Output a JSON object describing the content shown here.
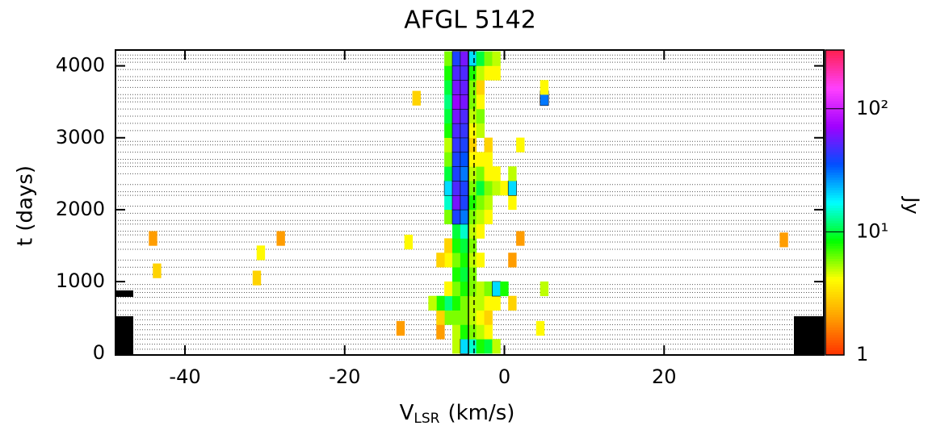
{
  "chart_data": {
    "type": "heatmap",
    "title": "AFGL 5142",
    "xlabel": {
      "main": "V",
      "sub": "LSR",
      "unit": "(km/s)"
    },
    "ylabel": "t (days)",
    "colorbar_label": "Jy",
    "xlim": [
      -48.7,
      40
    ],
    "ylim": [
      -20,
      4220
    ],
    "xticks": [
      -40,
      -20,
      0,
      20
    ],
    "yticks": [
      0,
      1000,
      2000,
      3000,
      4000
    ],
    "zlim": [
      1,
      300
    ],
    "zscale": "log",
    "zticks": [
      1,
      {
        "value": 10,
        "label": "10¹"
      },
      {
        "value": 100,
        "label": "10²"
      }
    ],
    "colormap": [
      "#ff3000",
      "#ffa000",
      "#ffff00",
      "#00ff00",
      "#00ffff",
      "#0050ff",
      "#a000ff",
      "#ff40ff",
      "#ff2050"
    ],
    "epochs": [
      60,
      130,
      200,
      260,
      330,
      400,
      470,
      540,
      600,
      700,
      780,
      850,
      900,
      960,
      1100,
      1200,
      1300,
      1450,
      1550,
      1650,
      1700,
      1800,
      1850,
      1950,
      2050,
      2200,
      2250,
      2350,
      2500,
      2600,
      2650,
      2700,
      2800,
      2900,
      2950,
      3100,
      3200,
      3300,
      3400,
      3500,
      3550,
      3600,
      3700,
      3800,
      3850,
      3950,
      4050,
      4100,
      4150
    ],
    "vlines": [
      {
        "x": -4.5,
        "style": "solid"
      },
      {
        "x": -3.8,
        "style": "dashed"
      }
    ],
    "points": [
      [
        -7,
        500,
        6
      ],
      [
        -7,
        700,
        12
      ],
      [
        -7,
        900,
        4
      ],
      [
        -7,
        1300,
        4
      ],
      [
        -7,
        1500,
        3
      ],
      [
        -7,
        1900,
        6
      ],
      [
        -7,
        2100,
        15
      ],
      [
        -7,
        2300,
        20
      ],
      [
        -7,
        2500,
        10
      ],
      [
        -7,
        2700,
        6
      ],
      [
        -7,
        2900,
        5
      ],
      [
        -7,
        3100,
        8
      ],
      [
        -7,
        3300,
        10
      ],
      [
        -7,
        3500,
        12
      ],
      [
        -7,
        3700,
        10
      ],
      [
        -7,
        3900,
        8
      ],
      [
        -7,
        4100,
        6
      ],
      [
        -6,
        100,
        5
      ],
      [
        -6,
        300,
        5
      ],
      [
        -6,
        500,
        6
      ],
      [
        -6,
        700,
        8
      ],
      [
        -6,
        900,
        6
      ],
      [
        -6,
        1100,
        8
      ],
      [
        -6,
        1300,
        6
      ],
      [
        -6,
        1500,
        8
      ],
      [
        -6,
        1700,
        10
      ],
      [
        -6,
        1900,
        40
      ],
      [
        -6,
        2100,
        60
      ],
      [
        -6,
        2300,
        50
      ],
      [
        -6,
        2500,
        40
      ],
      [
        -6,
        2700,
        40
      ],
      [
        -6,
        2900,
        45
      ],
      [
        -6,
        3100,
        50
      ],
      [
        -6,
        3300,
        60
      ],
      [
        -6,
        3500,
        70
      ],
      [
        -6,
        3700,
        60
      ],
      [
        -6,
        3900,
        50
      ],
      [
        -6,
        4100,
        40
      ],
      [
        -5,
        100,
        20
      ],
      [
        -5,
        300,
        8
      ],
      [
        -5,
        500,
        6
      ],
      [
        -5,
        700,
        6
      ],
      [
        -5,
        900,
        8
      ],
      [
        -5,
        1100,
        10
      ],
      [
        -5,
        1300,
        8
      ],
      [
        -5,
        1500,
        10
      ],
      [
        -5,
        1700,
        15
      ],
      [
        -5,
        1900,
        30
      ],
      [
        -5,
        2100,
        40
      ],
      [
        -5,
        2300,
        40
      ],
      [
        -5,
        2500,
        30
      ],
      [
        -5,
        2700,
        35
      ],
      [
        -5,
        2900,
        40
      ],
      [
        -5,
        3100,
        45
      ],
      [
        -5,
        3300,
        50
      ],
      [
        -5,
        3500,
        60
      ],
      [
        -5,
        3700,
        55
      ],
      [
        -5,
        3900,
        50
      ],
      [
        -5,
        4100,
        60
      ],
      [
        -4,
        100,
        15
      ],
      [
        -4,
        300,
        6
      ],
      [
        -4,
        500,
        5
      ],
      [
        -4,
        700,
        5
      ],
      [
        -4,
        900,
        6
      ],
      [
        -4,
        1100,
        6
      ],
      [
        -4,
        1300,
        5
      ],
      [
        -4,
        1500,
        6
      ],
      [
        -4,
        1700,
        5
      ],
      [
        -4,
        1900,
        6
      ],
      [
        -4,
        2100,
        8
      ],
      [
        -4,
        2300,
        6
      ],
      [
        -4,
        2500,
        5
      ],
      [
        -4,
        2700,
        4
      ],
      [
        -4,
        2900,
        3
      ],
      [
        -4,
        3100,
        4
      ],
      [
        -4,
        3300,
        5
      ],
      [
        -4,
        3500,
        6
      ],
      [
        -4,
        3700,
        6
      ],
      [
        -4,
        3900,
        8
      ],
      [
        -4,
        4100,
        20
      ],
      [
        -3,
        100,
        8
      ],
      [
        -3,
        300,
        5
      ],
      [
        -3,
        500,
        4
      ],
      [
        -3,
        700,
        5
      ],
      [
        -3,
        900,
        5
      ],
      [
        -3,
        1300,
        4
      ],
      [
        -3,
        1700,
        4
      ],
      [
        -3,
        1900,
        5
      ],
      [
        -3,
        2100,
        6
      ],
      [
        -3,
        2300,
        10
      ],
      [
        -3,
        2500,
        6
      ],
      [
        -3,
        2700,
        4
      ],
      [
        -3,
        3100,
        5
      ],
      [
        -3,
        3300,
        6
      ],
      [
        -3,
        3500,
        4
      ],
      [
        -3,
        3700,
        3
      ],
      [
        -3,
        3900,
        5
      ],
      [
        -3,
        4100,
        10
      ],
      [
        -2,
        100,
        10
      ],
      [
        -2,
        300,
        4
      ],
      [
        -2,
        500,
        3
      ],
      [
        -2,
        700,
        4
      ],
      [
        -2,
        900,
        6
      ],
      [
        -2,
        1900,
        4
      ],
      [
        -2,
        2100,
        5
      ],
      [
        -2,
        2300,
        6
      ],
      [
        -2,
        2500,
        4
      ],
      [
        -2,
        2700,
        4
      ],
      [
        -2,
        2900,
        3
      ],
      [
        -2,
        3900,
        4
      ],
      [
        -2,
        4100,
        6
      ],
      [
        -1,
        100,
        5
      ],
      [
        -1,
        700,
        4
      ],
      [
        -1,
        900,
        20
      ],
      [
        -1,
        2300,
        5
      ],
      [
        -1,
        2500,
        4
      ],
      [
        -1,
        3900,
        4
      ],
      [
        -1,
        4100,
        5
      ],
      [
        0,
        900,
        8
      ],
      [
        0,
        2300,
        4
      ],
      [
        1,
        700,
        3
      ],
      [
        1,
        1300,
        2
      ],
      [
        1,
        2100,
        4
      ],
      [
        1,
        2300,
        20
      ],
      [
        1,
        2500,
        5
      ],
      [
        2,
        1600,
        2
      ],
      [
        2,
        2900,
        4
      ],
      [
        -8,
        300,
        2
      ],
      [
        -8,
        500,
        3
      ],
      [
        -8,
        700,
        8
      ],
      [
        -8,
        1300,
        3
      ],
      [
        -9,
        700,
        5
      ],
      [
        -12,
        1550,
        4
      ],
      [
        -11,
        3550,
        3
      ],
      [
        -13,
        350,
        2
      ],
      [
        5,
        900,
        5
      ],
      [
        5,
        3550,
        30
      ],
      [
        5,
        3700,
        4
      ],
      [
        4.5,
        350,
        4
      ],
      [
        -43.5,
        1150,
        3
      ],
      [
        -44,
        1600,
        2
      ],
      [
        -30.5,
        1400,
        4
      ],
      [
        -31,
        1050,
        3
      ],
      [
        -28,
        1600,
        2
      ],
      [
        35,
        1580,
        2
      ]
    ]
  }
}
